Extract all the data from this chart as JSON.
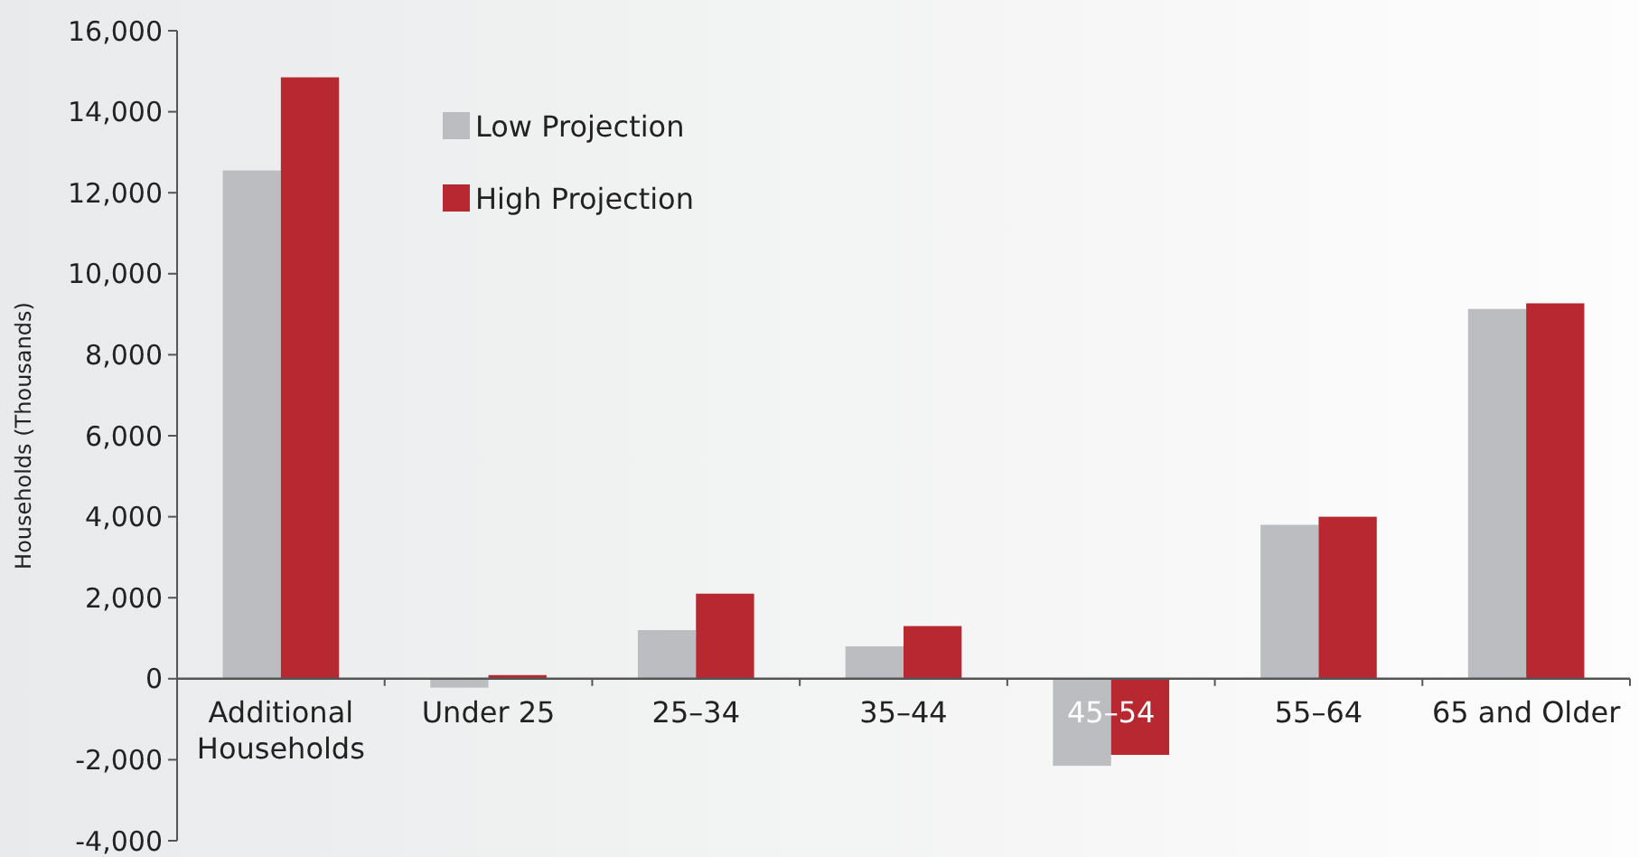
{
  "chart_data": {
    "type": "bar",
    "ylabel": "Households (Thousands)",
    "categories": [
      "Additional Households",
      "Under 25",
      "25–34",
      "35–44",
      "45–54",
      "55–64",
      "65 and Older"
    ],
    "series": [
      {
        "name": "Low Projection",
        "color": "#bcbdc0",
        "values": [
          12550,
          -220,
          1200,
          800,
          -2150,
          3800,
          9130
        ]
      },
      {
        "name": "High Projection",
        "color": "#b72830",
        "values": [
          14850,
          90,
          2100,
          1300,
          -1880,
          4000,
          9270
        ]
      }
    ],
    "ylim": [
      -4000,
      16000
    ],
    "yticks": [
      {
        "value": -4000,
        "label": "-4,000"
      },
      {
        "value": -2000,
        "label": "-2,000"
      },
      0,
      {
        "value": 2000,
        "label": "2,000"
      },
      {
        "value": 4000,
        "label": "4,000"
      },
      {
        "value": 6000,
        "label": "6,000"
      },
      {
        "value": 8000,
        "label": "8,000"
      },
      {
        "value": 10000,
        "label": "10,000"
      },
      {
        "value": 12000,
        "label": "12,000"
      },
      {
        "value": 14000,
        "label": "14,000"
      },
      {
        "value": 16000,
        "label": "16,000"
      }
    ],
    "legend": "top left",
    "grid": false
  }
}
